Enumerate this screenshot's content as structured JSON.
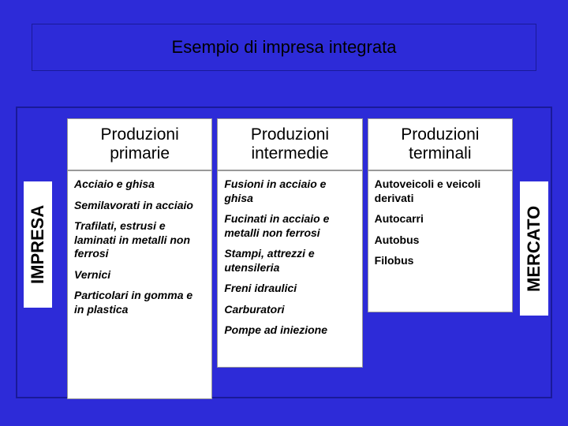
{
  "title": "Esempio di impresa integrata",
  "leftLabel": "IMPRESA",
  "rightLabel": "MERCATO",
  "colors": {
    "background": "#2d2bd8",
    "box_bg": "#ffffff",
    "border": "#1a1a99",
    "text": "#000000"
  },
  "columns": [
    {
      "header": "Produzioni primarie",
      "items": [
        "Acciaio e ghisa",
        "Semilavorati in acciaio",
        "Trafilati, estrusi e laminati in metalli non ferrosi",
        "Vernici",
        "Particolari in gomma e in plastica"
      ]
    },
    {
      "header": "Produzioni intermedie",
      "items": [
        "Fusioni in acciaio e ghisa",
        "Fucinati in acciaio e metalli non ferrosi",
        "Stampi, attrezzi e utensileria",
        "Freni idraulici",
        "Carburatori",
        "Pompe ad iniezione"
      ]
    },
    {
      "header": "Produzioni terminali",
      "items": [
        "Autoveicoli e veicoli derivati",
        "Autocarri",
        "Autobus",
        "Filobus"
      ]
    }
  ]
}
